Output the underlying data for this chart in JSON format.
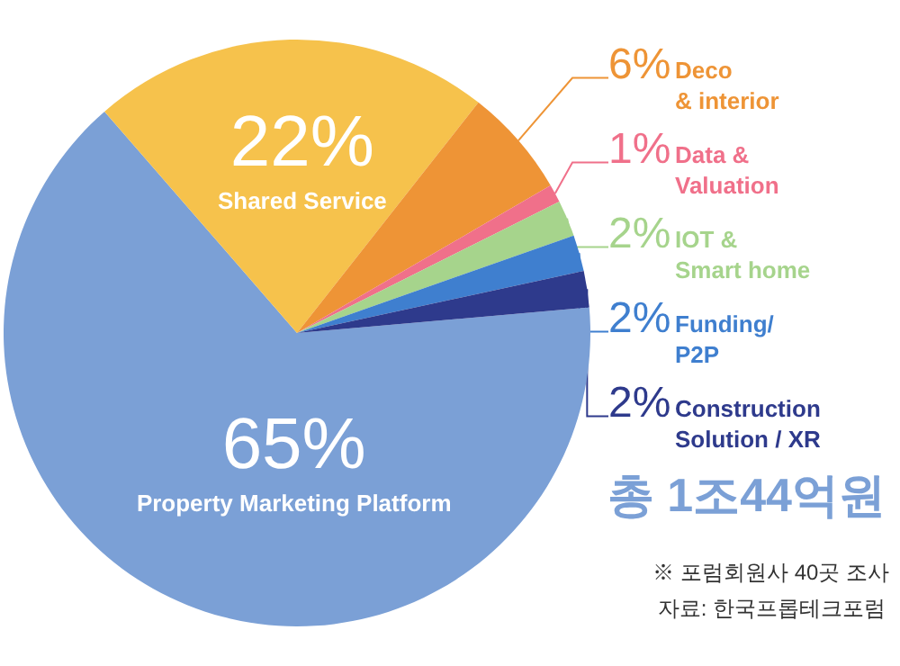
{
  "chart_data": {
    "type": "pie",
    "categories": [
      "Property Marketing Platform",
      "Shared Service",
      "Deco\n& interior",
      "Data &\nValuation",
      "IOT &\nSmart home",
      "Funding/\nP2P",
      "Construction\nSolution / XR"
    ],
    "values": [
      65,
      22,
      6,
      1,
      2,
      2,
      2
    ],
    "colors": [
      "#7ba0d6",
      "#f6c24c",
      "#ee9436",
      "#f0708a",
      "#a6d48c",
      "#3f7fcf",
      "#2e3a8c"
    ],
    "value_labels": [
      "65%",
      "22%",
      "6%",
      "1%",
      "2%",
      "2%",
      "2%"
    ],
    "annotations": [
      "총 1조44억원",
      "※ 포럼회원사 40곳 조사",
      "자료: 한국프롭테크포럼"
    ]
  }
}
